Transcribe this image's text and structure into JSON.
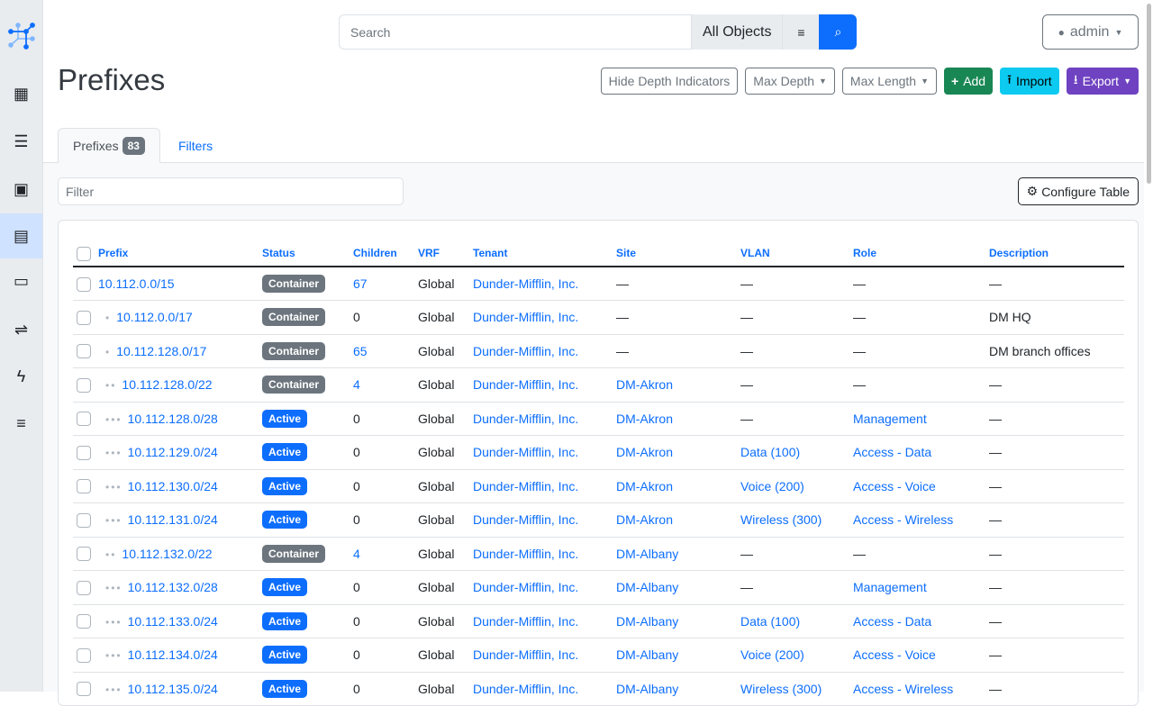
{
  "sidebar": {
    "items": [
      {
        "icon": "netbox-logo-icon"
      },
      {
        "icon": "organization-icon"
      },
      {
        "icon": "devices-icon"
      },
      {
        "icon": "connections-icon"
      },
      {
        "icon": "ipam-icon",
        "active": true
      },
      {
        "icon": "virtualization-icon"
      },
      {
        "icon": "circuits-icon"
      },
      {
        "icon": "power-icon"
      },
      {
        "icon": "other-icon"
      }
    ]
  },
  "search": {
    "placeholder": "Search",
    "scope": "All Objects"
  },
  "user": {
    "label": "admin"
  },
  "page": {
    "title": "Prefixes"
  },
  "actions": {
    "hide_depth": "Hide Depth Indicators",
    "max_depth": "Max Depth",
    "max_length": "Max Length",
    "add": "Add",
    "import": "Import",
    "export": "Export"
  },
  "colors": {
    "add": "#198754",
    "import": "#0dcaf0",
    "export": "#6f42c1",
    "active": "#0d6efd",
    "container": "#6c757d"
  },
  "tabs": {
    "prefixes": "Prefixes",
    "count": "83",
    "filters": "Filters"
  },
  "filter": {
    "placeholder": "Filter"
  },
  "configure": "Configure Table",
  "table": {
    "headers": [
      "Prefix",
      "Status",
      "Children",
      "VRF",
      "Tenant",
      "Site",
      "VLAN",
      "Role",
      "Description"
    ],
    "rows": [
      {
        "depth": 0,
        "prefix": "10.112.0.0/15",
        "status": "Container",
        "children": "67",
        "vrf": "Global",
        "tenant": "Dunder-Mifflin, Inc.",
        "site": "—",
        "vlan": "—",
        "role": "—",
        "description": "—"
      },
      {
        "depth": 1,
        "prefix": "10.112.0.0/17",
        "status": "Container",
        "children": "0",
        "vrf": "Global",
        "tenant": "Dunder-Mifflin, Inc.",
        "site": "—",
        "vlan": "—",
        "role": "—",
        "description": "DM HQ"
      },
      {
        "depth": 1,
        "prefix": "10.112.128.0/17",
        "status": "Container",
        "children": "65",
        "vrf": "Global",
        "tenant": "Dunder-Mifflin, Inc.",
        "site": "—",
        "vlan": "—",
        "role": "—",
        "description": "DM branch offices"
      },
      {
        "depth": 2,
        "prefix": "10.112.128.0/22",
        "status": "Container",
        "children": "4",
        "vrf": "Global",
        "tenant": "Dunder-Mifflin, Inc.",
        "site": "DM-Akron",
        "vlan": "—",
        "role": "—",
        "description": "—"
      },
      {
        "depth": 3,
        "prefix": "10.112.128.0/28",
        "status": "Active",
        "children": "0",
        "vrf": "Global",
        "tenant": "Dunder-Mifflin, Inc.",
        "site": "DM-Akron",
        "vlan": "—",
        "role": "Management",
        "description": "—"
      },
      {
        "depth": 3,
        "prefix": "10.112.129.0/24",
        "status": "Active",
        "children": "0",
        "vrf": "Global",
        "tenant": "Dunder-Mifflin, Inc.",
        "site": "DM-Akron",
        "vlan": "Data (100)",
        "role": "Access - Data",
        "description": "—"
      },
      {
        "depth": 3,
        "prefix": "10.112.130.0/24",
        "status": "Active",
        "children": "0",
        "vrf": "Global",
        "tenant": "Dunder-Mifflin, Inc.",
        "site": "DM-Akron",
        "vlan": "Voice (200)",
        "role": "Access - Voice",
        "description": "—"
      },
      {
        "depth": 3,
        "prefix": "10.112.131.0/24",
        "status": "Active",
        "children": "0",
        "vrf": "Global",
        "tenant": "Dunder-Mifflin, Inc.",
        "site": "DM-Akron",
        "vlan": "Wireless (300)",
        "role": "Access - Wireless",
        "description": "—"
      },
      {
        "depth": 2,
        "prefix": "10.112.132.0/22",
        "status": "Container",
        "children": "4",
        "vrf": "Global",
        "tenant": "Dunder-Mifflin, Inc.",
        "site": "DM-Albany",
        "vlan": "—",
        "role": "—",
        "description": "—"
      },
      {
        "depth": 3,
        "prefix": "10.112.132.0/28",
        "status": "Active",
        "children": "0",
        "vrf": "Global",
        "tenant": "Dunder-Mifflin, Inc.",
        "site": "DM-Albany",
        "vlan": "—",
        "role": "Management",
        "description": "—"
      },
      {
        "depth": 3,
        "prefix": "10.112.133.0/24",
        "status": "Active",
        "children": "0",
        "vrf": "Global",
        "tenant": "Dunder-Mifflin, Inc.",
        "site": "DM-Albany",
        "vlan": "Data (100)",
        "role": "Access - Data",
        "description": "—"
      },
      {
        "depth": 3,
        "prefix": "10.112.134.0/24",
        "status": "Active",
        "children": "0",
        "vrf": "Global",
        "tenant": "Dunder-Mifflin, Inc.",
        "site": "DM-Albany",
        "vlan": "Voice (200)",
        "role": "Access - Voice",
        "description": "—"
      },
      {
        "depth": 3,
        "prefix": "10.112.135.0/24",
        "status": "Active",
        "children": "0",
        "vrf": "Global",
        "tenant": "Dunder-Mifflin, Inc.",
        "site": "DM-Albany",
        "vlan": "Wireless (300)",
        "role": "Access - Wireless",
        "description": "—"
      }
    ]
  }
}
